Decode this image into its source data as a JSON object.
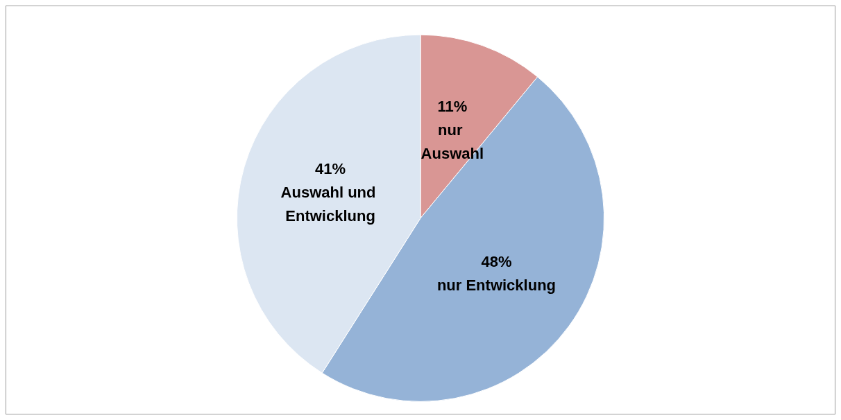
{
  "chart_data": {
    "type": "pie",
    "categories": [
      "nur Auswahl",
      "nur Entwicklung",
      "Auswahl und Entwicklung"
    ],
    "values": [
      11,
      48,
      41
    ],
    "colors": [
      "#d99694",
      "#95b3d7",
      "#dce6f2"
    ],
    "value_labels": [
      "11%",
      "48%",
      "41%"
    ],
    "legend": false
  }
}
